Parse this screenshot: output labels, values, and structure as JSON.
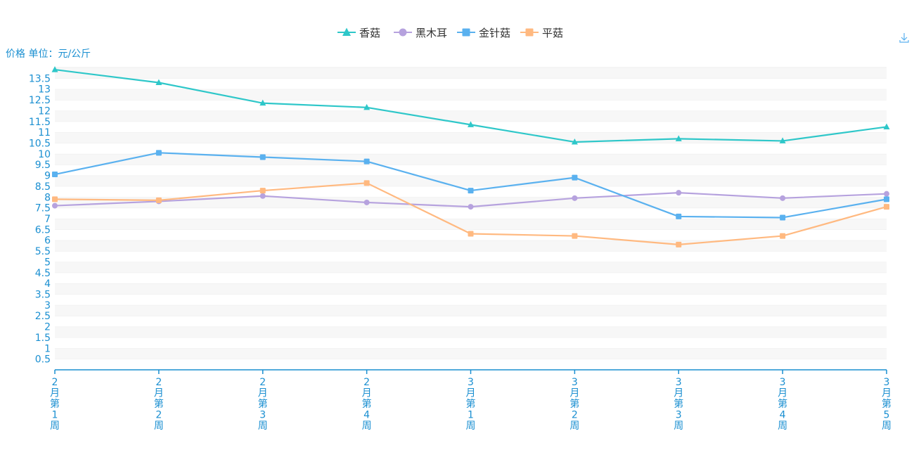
{
  "chart_data": {
    "type": "line",
    "ylabel": "价格 单位：元/公斤",
    "categories": [
      [
        "2",
        "月",
        "第",
        "1",
        "周"
      ],
      [
        "2",
        "月",
        "第",
        "2",
        "周"
      ],
      [
        "2",
        "月",
        "第",
        "3",
        "周"
      ],
      [
        "2",
        "月",
        "第",
        "4",
        "周"
      ],
      [
        "3",
        "月",
        "第",
        "1",
        "周"
      ],
      [
        "3",
        "月",
        "第",
        "2",
        "周"
      ],
      [
        "3",
        "月",
        "第",
        "3",
        "周"
      ],
      [
        "3",
        "月",
        "第",
        "4",
        "周"
      ],
      [
        "3",
        "月",
        "第",
        "5",
        "周"
      ]
    ],
    "yticks": [
      "0.5",
      "1",
      "1.5",
      "2",
      "2.5",
      "3",
      "3.5",
      "4",
      "4.5",
      "5",
      "5.5",
      "6",
      "6.5",
      "7",
      "7.5",
      "8",
      "8.5",
      "9",
      "9.5",
      "10",
      "10.5",
      "11",
      "11.5",
      "12",
      "12.5",
      "13",
      "13.5"
    ],
    "ylim": [
      0,
      14
    ],
    "grid": "striped",
    "legend_position": "top-center",
    "series": [
      {
        "name": "香菇",
        "marker": "triangle",
        "color": "#2ec7c9",
        "values": [
          13.9,
          13.3,
          12.35,
          12.15,
          11.35,
          10.55,
          10.7,
          10.6,
          11.25
        ]
      },
      {
        "name": "黑木耳",
        "marker": "circle",
        "color": "#b6a2de",
        "values": [
          7.6,
          7.8,
          8.05,
          7.75,
          7.55,
          7.95,
          8.2,
          7.95,
          8.15
        ]
      },
      {
        "name": "金针菇",
        "marker": "square",
        "color": "#5ab1ef",
        "values": [
          9.05,
          10.05,
          9.85,
          9.65,
          8.3,
          8.9,
          7.1,
          7.05,
          7.9
        ]
      },
      {
        "name": "平菇",
        "marker": "square",
        "color": "#ffb980",
        "values": [
          7.9,
          7.85,
          8.3,
          8.65,
          6.3,
          6.2,
          5.8,
          6.2,
          7.55
        ]
      }
    ]
  },
  "toolbox": {
    "download_icon": "download-icon",
    "color": "#5ab1ef"
  }
}
